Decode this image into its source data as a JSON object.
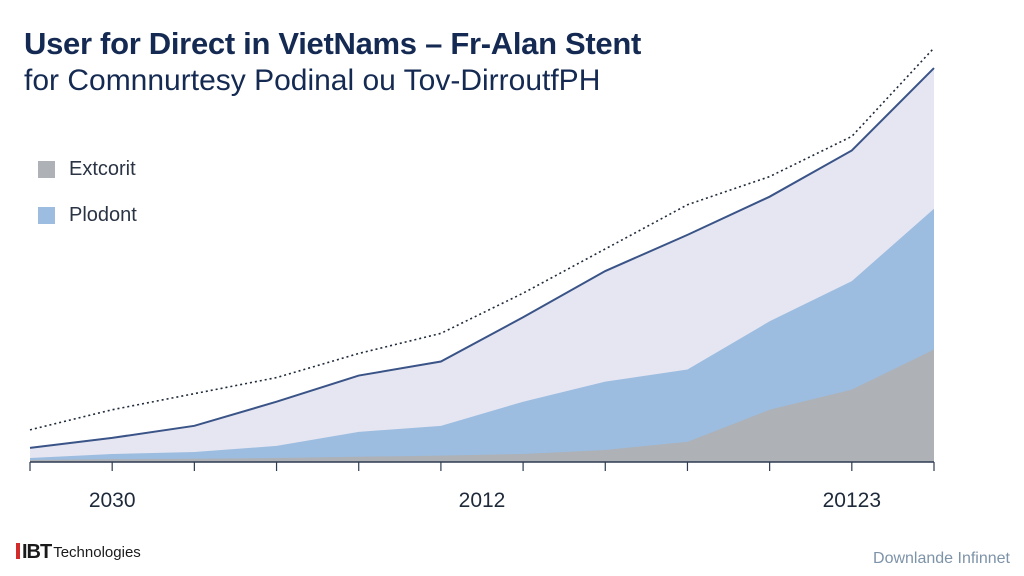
{
  "chart_data": {
    "type": "area",
    "title": "User for Direct in VietNams – Fr-Alan Stent",
    "subtitle": "for Comnnurtesy Podinal ou Tov-DirroutfPH",
    "x": [
      0,
      1,
      2,
      3,
      4,
      5,
      6,
      7,
      8,
      9,
      10,
      11
    ],
    "xtick_labels": [
      {
        "x": 1,
        "label": "2030"
      },
      {
        "x": 5.5,
        "label": "2012"
      },
      {
        "x": 10,
        "label": "20123"
      }
    ],
    "ylim": [
      0,
      100
    ],
    "series": [
      {
        "name": "Extcorit",
        "color": "#aeb1b6",
        "values": [
          0.5,
          0.7,
          0.8,
          1,
          1.3,
          1.6,
          2,
          3,
          5,
          13,
          18,
          28
        ]
      },
      {
        "name": "Plodont",
        "color": "#9cbde0",
        "values": [
          1,
          2,
          2.5,
          4,
          7.5,
          9,
          15,
          20,
          23,
          35,
          45,
          63
        ]
      },
      {
        "values": [
          3.5,
          6,
          9,
          15,
          21.5,
          25,
          36,
          47.5,
          56.5,
          66,
          77.5,
          98
        ],
        "color": "#e6e6f2"
      }
    ],
    "reference_line": {
      "style": "dotted",
      "values": [
        8,
        13,
        17,
        21,
        27,
        32,
        42,
        53,
        64,
        71,
        81,
        103
      ]
    },
    "grid": false,
    "legend_position": "top-left"
  },
  "footer": {
    "brand_mark": "IBT",
    "brand_name": "Technologies",
    "note": "Downlande Infinnet"
  }
}
